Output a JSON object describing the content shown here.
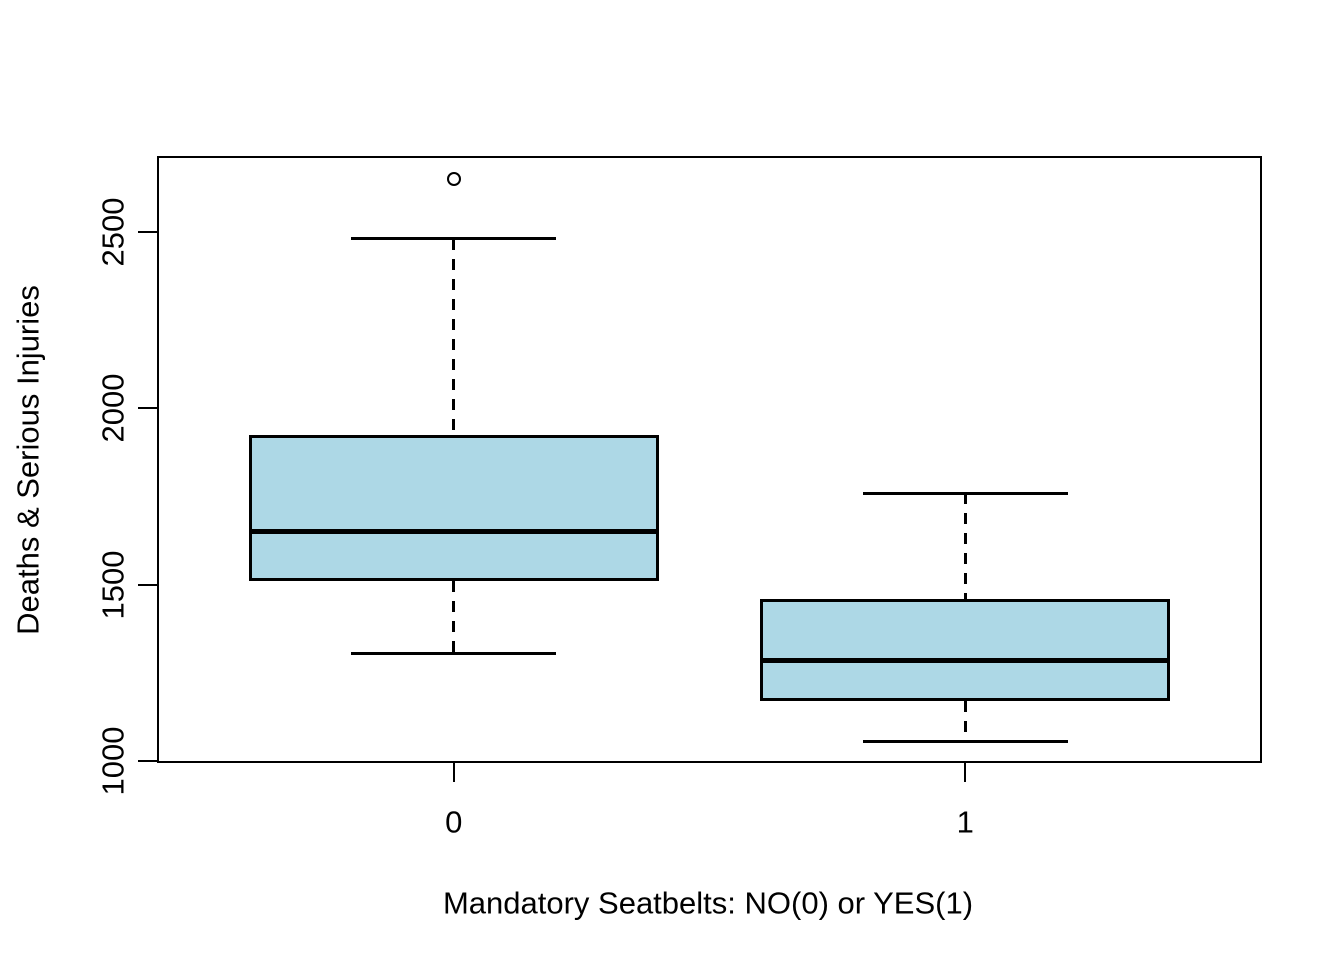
{
  "chart_data": {
    "type": "boxplot",
    "title": "",
    "xlabel": "Mandatory Seatbelts: NO(0) or YES(1)",
    "ylabel": "Deaths & Serious Injuries",
    "categories": [
      "0",
      "1"
    ],
    "y_ticks": [
      1000,
      1500,
      2000,
      2500
    ],
    "ylim": [
      995,
      2715
    ],
    "grid": "off",
    "legend": "none",
    "box_fill_color": "#ADD8E6",
    "line_color": "#000000",
    "background_color": "#FFFFFF",
    "series": [
      {
        "category": "0",
        "lower_whisker": 1305,
        "q1": 1510,
        "median": 1650,
        "q3": 1925,
        "upper_whisker": 2480,
        "outliers": [
          2650
        ]
      },
      {
        "category": "1",
        "lower_whisker": 1055,
        "q1": 1170,
        "median": 1285,
        "q3": 1460,
        "upper_whisker": 1760,
        "outliers": []
      }
    ]
  }
}
